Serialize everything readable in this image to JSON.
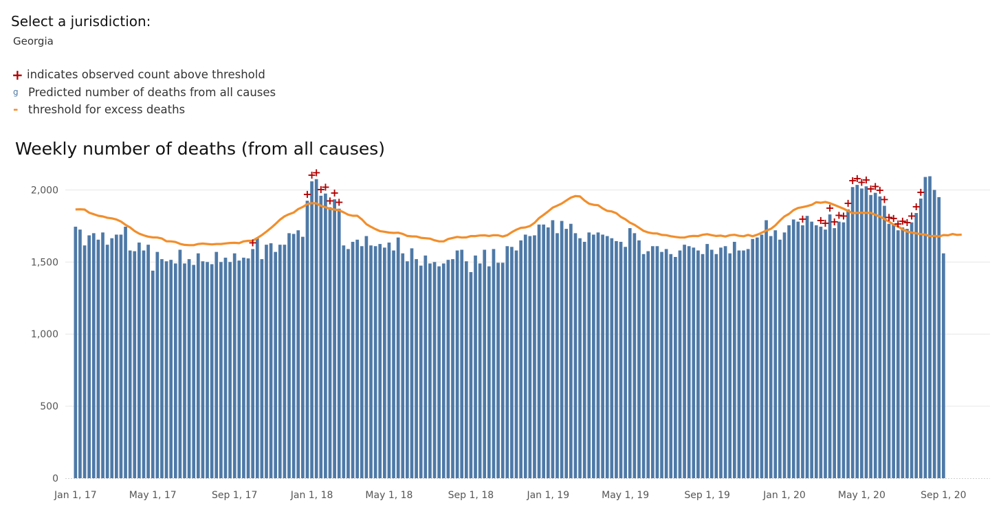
{
  "selector": {
    "label": "Select a jurisdiction:",
    "value": "Georgia"
  },
  "legend": [
    {
      "symbol": "+",
      "icon": "plus-icon",
      "color": "#b30000",
      "label": "indicates observed count above threshold"
    },
    {
      "symbol": "g",
      "icon": "bar-swatch-icon",
      "color": "#4e79a7",
      "label": "Predicted number of deaths from all causes"
    },
    {
      "symbol": "-",
      "icon": "line-swatch-icon",
      "color": "#f28e2b",
      "label": "threshold for excess deaths"
    }
  ],
  "chart_data": {
    "type": "bar",
    "title": "Weekly number of deaths (from all causes)",
    "xlabel": "",
    "ylabel": "",
    "ylim": [
      0,
      2250
    ],
    "grid": true,
    "yticks": [
      0,
      500,
      1000,
      1500,
      2000
    ],
    "ytick_labels": [
      "0",
      "500",
      "1,000",
      "1,500",
      "2,000"
    ],
    "xtick_labels": [
      "Jan 1, 17",
      "May 1, 17",
      "Sep 1, 17",
      "Jan 1, 18",
      "May 1, 18",
      "Sep 1, 18",
      "Jan 1, 19",
      "May 1, 19",
      "Sep 1, 19",
      "Jan 1, 20",
      "May 1, 20",
      "Sep 1, 20"
    ],
    "xtick_week_index": [
      0,
      17,
      35,
      52,
      69,
      87,
      104,
      121,
      139,
      156,
      173,
      191
    ],
    "colors": {
      "bars": "#4e79a7",
      "threshold": "#f28e2b",
      "marker": "#b30000"
    },
    "series": [
      {
        "name": "Predicted number of deaths from all causes",
        "values": [
          1745,
          1725,
          1615,
          1685,
          1700,
          1655,
          1705,
          1620,
          1665,
          1690,
          1690,
          1745,
          1580,
          1575,
          1635,
          1580,
          1620,
          1440,
          1570,
          1520,
          1505,
          1515,
          1490,
          1585,
          1490,
          1520,
          1480,
          1560,
          1505,
          1500,
          1485,
          1570,
          1500,
          1530,
          1500,
          1560,
          1510,
          1530,
          1525,
          1590,
          1665,
          1520,
          1620,
          1630,
          1570,
          1620,
          1620,
          1700,
          1695,
          1720,
          1675,
          1925,
          2060,
          2075,
          1960,
          1975,
          1880,
          1935,
          1870,
          1615,
          1590,
          1640,
          1655,
          1610,
          1680,
          1615,
          1610,
          1625,
          1600,
          1635,
          1580,
          1670,
          1560,
          1505,
          1595,
          1520,
          1475,
          1545,
          1490,
          1500,
          1470,
          1490,
          1515,
          1520,
          1580,
          1585,
          1505,
          1430,
          1545,
          1490,
          1585,
          1470,
          1590,
          1495,
          1495,
          1610,
          1605,
          1580,
          1650,
          1690,
          1680,
          1685,
          1760,
          1760,
          1740,
          1790,
          1700,
          1785,
          1730,
          1765,
          1700,
          1665,
          1640,
          1705,
          1690,
          1705,
          1690,
          1680,
          1665,
          1645,
          1640,
          1605,
          1735,
          1700,
          1650,
          1555,
          1575,
          1610,
          1610,
          1570,
          1590,
          1555,
          1535,
          1580,
          1620,
          1610,
          1600,
          1580,
          1555,
          1625,
          1585,
          1555,
          1600,
          1610,
          1560,
          1640,
          1580,
          1580,
          1590,
          1660,
          1670,
          1690,
          1790,
          1680,
          1720,
          1655,
          1705,
          1755,
          1795,
          1780,
          1755,
          1820,
          1780,
          1755,
          1745,
          1725,
          1830,
          1735,
          1780,
          1775,
          1865,
          2020,
          2035,
          2010,
          2025,
          1965,
          1980,
          1955,
          1890,
          1765,
          1760,
          1720,
          1740,
          1730,
          1775,
          1840,
          1940,
          2090,
          2095,
          2000,
          1950,
          1560
        ]
      },
      {
        "name": "threshold for excess deaths",
        "values": [
          1865,
          1866,
          1864,
          1842,
          1832,
          1821,
          1816,
          1807,
          1803,
          1795,
          1781,
          1758,
          1740,
          1715,
          1697,
          1685,
          1676,
          1671,
          1670,
          1663,
          1644,
          1643,
          1639,
          1626,
          1619,
          1617,
          1617,
          1625,
          1628,
          1625,
          1622,
          1625,
          1625,
          1629,
          1632,
          1633,
          1631,
          1643,
          1647,
          1648,
          1667,
          1687,
          1711,
          1736,
          1764,
          1794,
          1817,
          1832,
          1843,
          1867,
          1882,
          1902,
          1908,
          1907,
          1890,
          1880,
          1869,
          1864,
          1859,
          1845,
          1828,
          1821,
          1821,
          1796,
          1763,
          1744,
          1728,
          1714,
          1710,
          1704,
          1702,
          1703,
          1695,
          1681,
          1678,
          1677,
          1668,
          1665,
          1662,
          1651,
          1643,
          1643,
          1660,
          1667,
          1674,
          1670,
          1671,
          1680,
          1680,
          1684,
          1685,
          1681,
          1686,
          1685,
          1677,
          1686,
          1707,
          1724,
          1737,
          1740,
          1750,
          1772,
          1805,
          1827,
          1851,
          1877,
          1891,
          1906,
          1927,
          1947,
          1958,
          1955,
          1927,
          1905,
          1897,
          1894,
          1872,
          1855,
          1851,
          1839,
          1813,
          1796,
          1773,
          1758,
          1737,
          1716,
          1705,
          1699,
          1698,
          1688,
          1686,
          1679,
          1674,
          1670,
          1670,
          1678,
          1681,
          1680,
          1689,
          1693,
          1686,
          1681,
          1683,
          1677,
          1686,
          1689,
          1682,
          1679,
          1688,
          1679,
          1689,
          1703,
          1718,
          1730,
          1754,
          1787,
          1816,
          1834,
          1860,
          1875,
          1881,
          1888,
          1897,
          1915,
          1911,
          1917,
          1908,
          1896,
          1883,
          1870,
          1854,
          1839,
          1841,
          1842,
          1841,
          1841,
          1827,
          1816,
          1798,
          1781,
          1760,
          1746,
          1727,
          1711,
          1704,
          1699,
          1693,
          1690,
          1679,
          1681,
          1677,
          1687,
          1685,
          1694,
          1688,
          1690
        ]
      }
    ],
    "above_threshold_weeks": [
      39,
      51,
      52,
      53,
      54,
      55,
      56,
      57,
      58,
      160,
      164,
      165,
      166,
      167,
      168,
      169,
      170,
      171,
      172,
      173,
      174,
      175,
      176,
      177,
      178,
      179,
      180,
      181,
      182,
      183,
      184,
      185,
      186
    ]
  }
}
